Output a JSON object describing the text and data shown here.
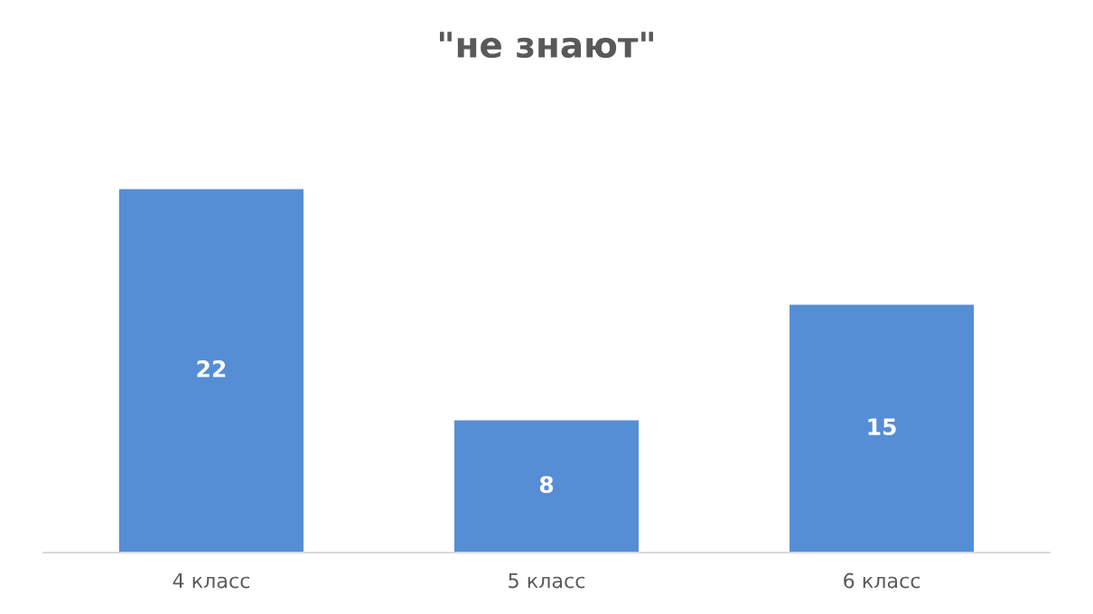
{
  "chart_data": {
    "type": "bar",
    "title": "\"не знают\"",
    "categories": [
      "4 класс",
      "5 класс",
      "6 класс"
    ],
    "values": [
      22,
      8,
      15
    ],
    "color": "#558ed5",
    "data_labels": true,
    "grid": false,
    "legend": false
  }
}
